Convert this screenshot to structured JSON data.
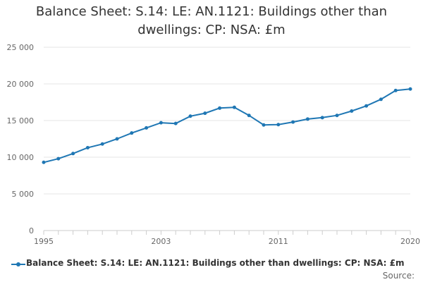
{
  "chart_data": {
    "type": "line",
    "title": "Balance Sheet: S.14: LE: AN.1121: Buildings other than dwellings: CP: NSA: £m",
    "title_lines": [
      "Balance Sheet: S.14: LE: AN.1121: Buildings other than",
      "dwellings: CP: NSA: £m"
    ],
    "xlabel": "",
    "ylabel": "",
    "x": [
      1995,
      1996,
      1997,
      1998,
      1999,
      2000,
      2001,
      2002,
      2003,
      2004,
      2005,
      2006,
      2007,
      2008,
      2009,
      2010,
      2011,
      2012,
      2013,
      2014,
      2015,
      2016,
      2017,
      2018,
      2019,
      2020
    ],
    "series": [
      {
        "name": "Balance Sheet: S.14: LE: AN.1121: Buildings other than dwellings: CP: NSA: £m",
        "color": "#1f77b4",
        "values": [
          9300,
          9800,
          10500,
          11300,
          11800,
          12500,
          13300,
          14000,
          14700,
          14600,
          15600,
          16000,
          16700,
          16800,
          15700,
          14400,
          14450,
          14800,
          15200,
          15400,
          15700,
          16300,
          17000,
          17900,
          19100,
          19300
        ]
      }
    ],
    "xlim": [
      1995,
      2020
    ],
    "ylim": [
      0,
      25000
    ],
    "x_ticks": [
      1995,
      2003,
      2011,
      2020
    ],
    "x_tick_labels": [
      "1995",
      "2003",
      "2011",
      "2020"
    ],
    "y_ticks": [
      0,
      5000,
      10000,
      15000,
      20000,
      25000
    ],
    "y_tick_labels": [
      "0",
      "5 000",
      "10 000",
      "15 000",
      "20 000",
      "25 000"
    ],
    "grid": true,
    "legend": "bottom",
    "source_label": "Source:"
  }
}
